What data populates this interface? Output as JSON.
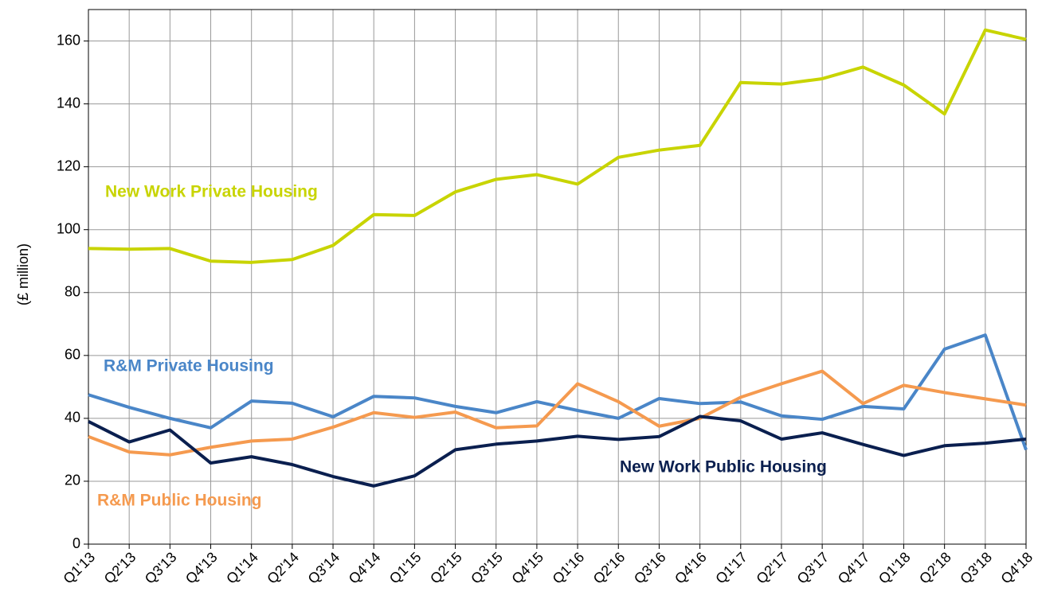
{
  "chart_data": {
    "type": "line",
    "y_label": "(£ million)",
    "categories": [
      "Q1'13",
      "Q2'13",
      "Q3'13",
      "Q4'13",
      "Q1'14",
      "Q2'14",
      "Q3'14",
      "Q4'14",
      "Q1'15",
      "Q2'15",
      "Q3'15",
      "Q4'15",
      "Q1'16",
      "Q2'16",
      "Q3'16",
      "Q4'16",
      "Q1'17",
      "Q2'17",
      "Q3'17",
      "Q4'17",
      "Q1'18",
      "Q2'18",
      "Q3'18",
      "Q4'18"
    ],
    "series": [
      {
        "name": "New Work Private Housing",
        "color": "#c8d400",
        "values": [
          94,
          93.8,
          94,
          90,
          89.6,
          90.5,
          95,
          104.8,
          104.5,
          112,
          116,
          117.5,
          114.5,
          123,
          125.3,
          126.8,
          146.8,
          146.3,
          148,
          151.7,
          146,
          136.8,
          163.5,
          160.5
        ]
      },
      {
        "name": "R&M Private Housing",
        "color": "#4a86c8",
        "values": [
          47.5,
          43.5,
          40,
          37,
          45.5,
          44.8,
          40.5,
          47,
          46.5,
          43.8,
          41.8,
          45.3,
          42.5,
          40,
          46.3,
          44.7,
          45.2,
          40.8,
          39.7,
          43.8,
          43,
          62,
          66.5,
          30
        ]
      },
      {
        "name": "R&M Public Housing",
        "color": "#f59a4f",
        "values": [
          34.2,
          29.3,
          28.4,
          30.8,
          32.8,
          33.4,
          37.2,
          41.8,
          40.3,
          42,
          37,
          37.6,
          51,
          45.3,
          37.5,
          40,
          46.7,
          51,
          55,
          44.7,
          50.5,
          48.2,
          46.2,
          44.2
        ]
      },
      {
        "name": "New Work Public Housing",
        "color": "#0a1f4f",
        "values": [
          39,
          32.5,
          36.3,
          25.8,
          27.8,
          25.3,
          21.5,
          18.5,
          21.7,
          30,
          31.8,
          32.8,
          34.3,
          33.3,
          34.2,
          40.6,
          39.2,
          33.4,
          35.4,
          31.7,
          28.2,
          31.3,
          32.1,
          33.4
        ]
      }
    ],
    "ylim": [
      0,
      170
    ],
    "yticks": [
      0,
      20,
      40,
      60,
      80,
      100,
      120,
      140,
      160
    ],
    "grid": true
  }
}
